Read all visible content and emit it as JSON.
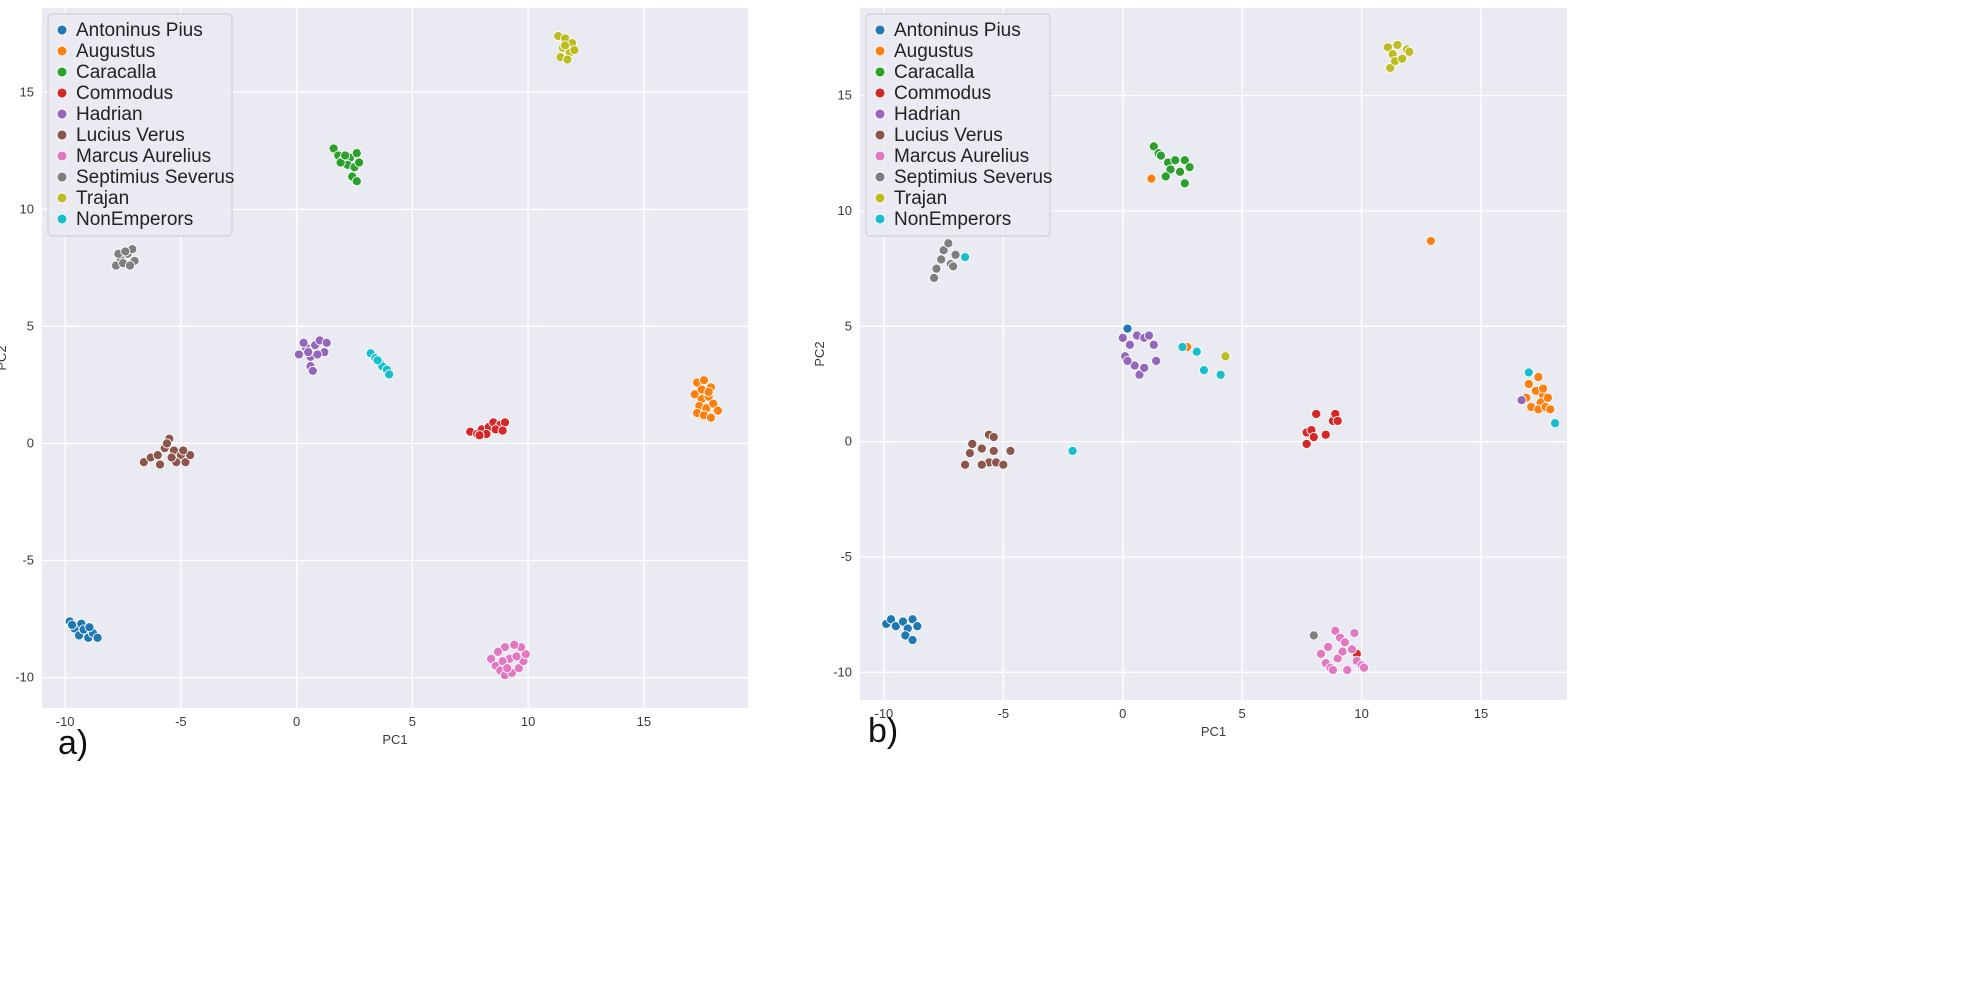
{
  "panel_labels": [
    "a)",
    "b)"
  ],
  "colors": {
    "Antoninus Pius": "#1f77b4",
    "Augustus": "#ff7f0e",
    "Caracalla": "#2ca02c",
    "Commodus": "#d62728",
    "Hadrian": "#9467bd",
    "Lucius Verus": "#8c564b",
    "Marcus Aurelius": "#e377c2",
    "Septimius Severus": "#7f7f7f",
    "Trajan": "#bcbd22",
    "NonEmperors": "#17becf"
  },
  "chart_data": [
    {
      "type": "scatter",
      "panel": "a)",
      "xlabel": "PC1",
      "ylabel": "PC2",
      "xlim": [
        -11,
        19.5
      ],
      "ylim": [
        -11.3,
        18.6
      ],
      "xticks": [
        -10,
        -5,
        0,
        5,
        10,
        15
      ],
      "yticks": [
        -10,
        -5,
        0,
        5,
        10,
        15
      ],
      "legend": [
        "Antoninus Pius",
        "Augustus",
        "Caracalla",
        "Commodus",
        "Hadrian",
        "Lucius Verus",
        "Marcus Aurelius",
        "Septimius Severus",
        "Trajan",
        "NonEmperors"
      ],
      "legend_position": "top-left",
      "series": [
        {
          "name": "Antoninus Pius",
          "points": [
            [
              -9.8,
              -7.6
            ],
            [
              -9.6,
              -7.9
            ],
            [
              -9.3,
              -7.7
            ],
            [
              -9.1,
              -8.0
            ],
            [
              -9.4,
              -8.2
            ],
            [
              -9.0,
              -8.3
            ],
            [
              -8.8,
              -8.1
            ],
            [
              -8.6,
              -8.3
            ],
            [
              -9.7,
              -7.75
            ],
            [
              -9.2,
              -7.95
            ],
            [
              -8.95,
              -7.85
            ]
          ]
        },
        {
          "name": "Augustus",
          "points": [
            [
              17.3,
              2.6
            ],
            [
              17.6,
              2.7
            ],
            [
              17.9,
              2.4
            ],
            [
              17.2,
              2.1
            ],
            [
              17.5,
              1.9
            ],
            [
              17.8,
              2.0
            ],
            [
              17.4,
              1.6
            ],
            [
              17.7,
              1.5
            ],
            [
              18.0,
              1.7
            ],
            [
              17.3,
              1.3
            ],
            [
              17.6,
              1.2
            ],
            [
              17.9,
              1.1
            ],
            [
              18.2,
              1.4
            ],
            [
              17.5,
              2.3
            ],
            [
              17.8,
              2.2
            ]
          ]
        },
        {
          "name": "Caracalla",
          "points": [
            [
              1.6,
              12.6
            ],
            [
              1.8,
              12.3
            ],
            [
              2.0,
              12.1
            ],
            [
              2.3,
              12.2
            ],
            [
              2.6,
              12.4
            ],
            [
              2.2,
              11.9
            ],
            [
              2.5,
              11.8
            ],
            [
              2.4,
              11.4
            ],
            [
              2.6,
              11.2
            ],
            [
              1.9,
              12.0
            ],
            [
              2.7,
              12.0
            ],
            [
              2.1,
              12.3
            ]
          ]
        },
        {
          "name": "Commodus",
          "points": [
            [
              7.5,
              0.5
            ],
            [
              7.8,
              0.4
            ],
            [
              8.0,
              0.6
            ],
            [
              8.3,
              0.7
            ],
            [
              8.5,
              0.9
            ],
            [
              8.8,
              0.8
            ],
            [
              9.0,
              0.9
            ],
            [
              8.6,
              0.6
            ],
            [
              8.2,
              0.4
            ],
            [
              7.9,
              0.35
            ],
            [
              8.9,
              0.55
            ]
          ]
        },
        {
          "name": "Hadrian",
          "points": [
            [
              0.1,
              3.8
            ],
            [
              0.4,
              4.1
            ],
            [
              0.6,
              3.7
            ],
            [
              0.8,
              4.2
            ],
            [
              1.0,
              4.4
            ],
            [
              1.3,
              4.3
            ],
            [
              1.2,
              3.9
            ],
            [
              0.9,
              3.8
            ],
            [
              0.6,
              3.3
            ],
            [
              0.7,
              3.1
            ],
            [
              0.3,
              4.3
            ],
            [
              0.5,
              3.9
            ]
          ]
        },
        {
          "name": "Lucius Verus",
          "points": [
            [
              -6.6,
              -0.8
            ],
            [
              -6.3,
              -0.6
            ],
            [
              -6.0,
              -0.5
            ],
            [
              -5.7,
              -0.2
            ],
            [
              -5.5,
              0.2
            ],
            [
              -5.3,
              -0.3
            ],
            [
              -5.0,
              -0.5
            ],
            [
              -4.8,
              -0.8
            ],
            [
              -4.6,
              -0.5
            ],
            [
              -5.9,
              -0.9
            ],
            [
              -5.2,
              -0.8
            ],
            [
              -5.6,
              0.0
            ],
            [
              -4.9,
              -0.3
            ],
            [
              -5.4,
              -0.6
            ]
          ]
        },
        {
          "name": "Marcus Aurelius",
          "points": [
            [
              8.4,
              -9.2
            ],
            [
              8.6,
              -9.5
            ],
            [
              8.8,
              -9.7
            ],
            [
              9.0,
              -9.9
            ],
            [
              9.3,
              -9.8
            ],
            [
              9.6,
              -9.6
            ],
            [
              9.8,
              -9.3
            ],
            [
              9.9,
              -9.0
            ],
            [
              9.7,
              -8.7
            ],
            [
              9.4,
              -8.6
            ],
            [
              9.0,
              -8.7
            ],
            [
              8.7,
              -8.9
            ],
            [
              9.2,
              -9.2
            ],
            [
              9.5,
              -9.1
            ],
            [
              8.9,
              -9.3
            ],
            [
              9.1,
              -9.6
            ]
          ]
        },
        {
          "name": "Septimius Severus",
          "points": [
            [
              -7.8,
              7.6
            ],
            [
              -7.6,
              7.9
            ],
            [
              -7.3,
              8.1
            ],
            [
              -7.1,
              8.3
            ],
            [
              -7.0,
              7.8
            ],
            [
              -7.5,
              7.7
            ],
            [
              -7.7,
              8.1
            ],
            [
              -7.2,
              7.6
            ],
            [
              -7.4,
              8.2
            ]
          ]
        },
        {
          "name": "Trajan",
          "points": [
            [
              11.3,
              17.4
            ],
            [
              11.6,
              17.3
            ],
            [
              11.9,
              17.1
            ],
            [
              11.5,
              16.9
            ],
            [
              11.8,
              16.7
            ],
            [
              11.4,
              16.5
            ],
            [
              11.7,
              16.4
            ],
            [
              12.0,
              16.8
            ],
            [
              11.6,
              17.0
            ]
          ]
        },
        {
          "name": "NonEmperors",
          "points": [
            [
              3.2,
              3.85
            ],
            [
              3.4,
              3.65
            ],
            [
              3.6,
              3.45
            ],
            [
              3.7,
              3.3
            ],
            [
              3.9,
              3.15
            ],
            [
              4.0,
              2.95
            ],
            [
              3.5,
              3.55
            ]
          ]
        }
      ]
    },
    {
      "type": "scatter",
      "panel": "b)",
      "xlabel": "PC1",
      "ylabel": "PC2",
      "xlim": [
        -11,
        18.6
      ],
      "ylim": [
        -11.2,
        18.8
      ],
      "xticks": [
        -10,
        -5,
        0,
        5,
        10,
        15
      ],
      "yticks": [
        -10,
        -5,
        0,
        5,
        10,
        15
      ],
      "legend": [
        "Antoninus Pius",
        "Augustus",
        "Caracalla",
        "Commodus",
        "Hadrian",
        "Lucius Verus",
        "Marcus Aurelius",
        "Septimius Severus",
        "Trajan",
        "NonEmperors"
      ],
      "legend_position": "top-left",
      "series": [
        {
          "name": "Antoninus Pius",
          "points": [
            [
              -9.9,
              -7.9
            ],
            [
              -9.7,
              -7.7
            ],
            [
              -9.5,
              -8.0
            ],
            [
              -9.2,
              -7.8
            ],
            [
              -9.0,
              -8.1
            ],
            [
              -8.8,
              -7.7
            ],
            [
              -9.1,
              -8.4
            ],
            [
              -8.8,
              -8.6
            ],
            [
              -8.6,
              -8.0
            ],
            [
              0.2,
              4.9
            ]
          ]
        },
        {
          "name": "Augustus",
          "points": [
            [
              17.0,
              2.5
            ],
            [
              17.4,
              2.8
            ],
            [
              17.3,
              2.2
            ],
            [
              17.6,
              2.0
            ],
            [
              17.5,
              1.7
            ],
            [
              17.8,
              1.9
            ],
            [
              17.1,
              1.5
            ],
            [
              17.4,
              1.4
            ],
            [
              17.7,
              1.5
            ],
            [
              17.9,
              1.4
            ],
            [
              16.9,
              1.9
            ],
            [
              17.6,
              2.3
            ],
            [
              1.2,
              11.4
            ],
            [
              12.9,
              8.7
            ],
            [
              2.7,
              4.1
            ]
          ]
        },
        {
          "name": "Caracalla",
          "points": [
            [
              1.3,
              12.8
            ],
            [
              1.5,
              12.5
            ],
            [
              1.6,
              12.4
            ],
            [
              1.9,
              12.1
            ],
            [
              2.2,
              12.2
            ],
            [
              2.6,
              12.2
            ],
            [
              2.0,
              11.8
            ],
            [
              2.4,
              11.7
            ],
            [
              2.6,
              11.2
            ],
            [
              1.8,
              11.5
            ],
            [
              2.8,
              11.9
            ]
          ]
        },
        {
          "name": "Commodus",
          "points": [
            [
              7.7,
              0.4
            ],
            [
              7.9,
              0.5
            ],
            [
              8.0,
              0.2
            ],
            [
              7.7,
              -0.1
            ],
            [
              8.1,
              1.2
            ],
            [
              8.5,
              0.3
            ],
            [
              8.8,
              0.9
            ],
            [
              8.9,
              1.2
            ],
            [
              9.0,
              0.9
            ],
            [
              9.8,
              -9.2
            ]
          ]
        },
        {
          "name": "Hadrian",
          "points": [
            [
              0.0,
              4.5
            ],
            [
              0.1,
              3.7
            ],
            [
              0.3,
              4.2
            ],
            [
              0.6,
              4.6
            ],
            [
              0.9,
              4.5
            ],
            [
              1.1,
              4.6
            ],
            [
              1.3,
              4.2
            ],
            [
              1.4,
              3.5
            ],
            [
              0.5,
              3.3
            ],
            [
              0.7,
              2.9
            ],
            [
              0.9,
              3.2
            ],
            [
              0.2,
              3.5
            ],
            [
              16.7,
              1.8
            ]
          ]
        },
        {
          "name": "Lucius Verus",
          "points": [
            [
              -6.6,
              -1.0
            ],
            [
              -6.4,
              -0.5
            ],
            [
              -6.3,
              -0.1
            ],
            [
              -5.9,
              -0.3
            ],
            [
              -5.6,
              0.3
            ],
            [
              -5.4,
              0.2
            ],
            [
              -5.4,
              -0.4
            ],
            [
              -5.6,
              -0.9
            ],
            [
              -5.3,
              -0.9
            ],
            [
              -5.0,
              -1.0
            ],
            [
              -4.7,
              -0.4
            ],
            [
              -5.9,
              -1.0
            ]
          ]
        },
        {
          "name": "Marcus Aurelius",
          "points": [
            [
              8.3,
              -9.2
            ],
            [
              8.5,
              -9.6
            ],
            [
              8.7,
              -9.8
            ],
            [
              8.9,
              -8.2
            ],
            [
              9.1,
              -8.5
            ],
            [
              9.3,
              -8.7
            ],
            [
              9.6,
              -9.0
            ],
            [
              9.8,
              -9.5
            ],
            [
              10.0,
              -9.7
            ],
            [
              9.0,
              -9.4
            ],
            [
              8.6,
              -8.9
            ],
            [
              9.4,
              -9.9
            ],
            [
              10.1,
              -9.8
            ],
            [
              9.7,
              -8.3
            ],
            [
              8.8,
              -9.9
            ],
            [
              9.2,
              -9.1
            ]
          ]
        },
        {
          "name": "Septimius Severus",
          "points": [
            [
              -7.9,
              7.1
            ],
            [
              -7.8,
              7.5
            ],
            [
              -7.6,
              7.9
            ],
            [
              -7.5,
              8.3
            ],
            [
              -7.3,
              8.6
            ],
            [
              -7.2,
              7.7
            ],
            [
              -7.0,
              8.1
            ],
            [
              -7.1,
              7.6
            ],
            [
              8.0,
              -8.4
            ]
          ]
        },
        {
          "name": "Trajan",
          "points": [
            [
              11.1,
              17.1
            ],
            [
              11.3,
              16.8
            ],
            [
              11.5,
              17.2
            ],
            [
              11.2,
              16.2
            ],
            [
              11.4,
              16.5
            ],
            [
              11.7,
              16.6
            ],
            [
              11.9,
              17.0
            ],
            [
              12.0,
              16.9
            ],
            [
              4.3,
              3.7
            ]
          ]
        },
        {
          "name": "NonEmperors",
          "points": [
            [
              -6.6,
              8.0
            ],
            [
              -2.1,
              -0.4
            ],
            [
              2.5,
              4.1
            ],
            [
              3.1,
              3.9
            ],
            [
              3.4,
              3.1
            ],
            [
              4.1,
              2.9
            ],
            [
              17.0,
              3.0
            ],
            [
              18.1,
              0.8
            ]
          ]
        }
      ]
    }
  ]
}
